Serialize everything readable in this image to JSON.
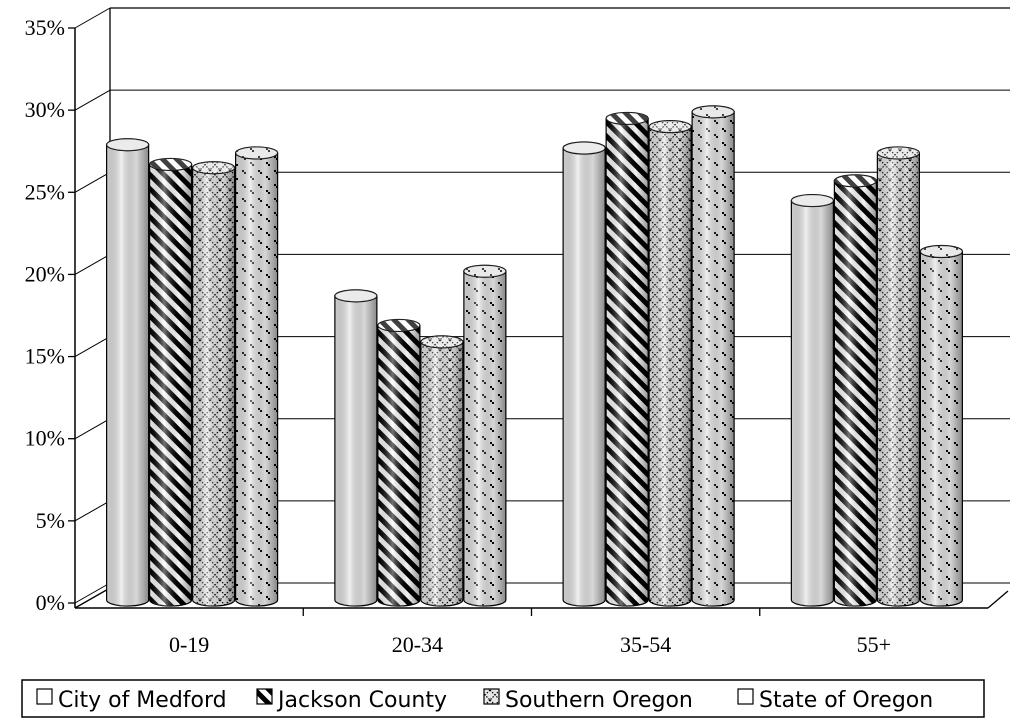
{
  "chart_data": {
    "type": "bar",
    "categories": [
      "0-19",
      "20-34",
      "35-54",
      "55+"
    ],
    "series": [
      {
        "name": "City of Medford",
        "values": [
          28.2,
          19.0,
          28.0,
          24.8
        ]
      },
      {
        "name": "Jackson County",
        "values": [
          27.0,
          17.2,
          29.8,
          26.0
        ]
      },
      {
        "name": "Southern Oregon",
        "values": [
          26.8,
          16.2,
          29.3,
          27.7
        ]
      },
      {
        "name": "State of Oregon",
        "values": [
          27.7,
          20.5,
          30.2,
          21.7
        ]
      }
    ],
    "yticks": [
      "0%",
      "5%",
      "10%",
      "15%",
      "20%",
      "25%",
      "30%",
      "35%"
    ],
    "ylim": [
      0,
      35
    ],
    "grid": true,
    "legend_position": "bottom",
    "colors": {
      "medford": "#e4e4e4",
      "jackson": "#000000",
      "southern": "#cfcfcf",
      "state": "#d6d6d6"
    }
  }
}
